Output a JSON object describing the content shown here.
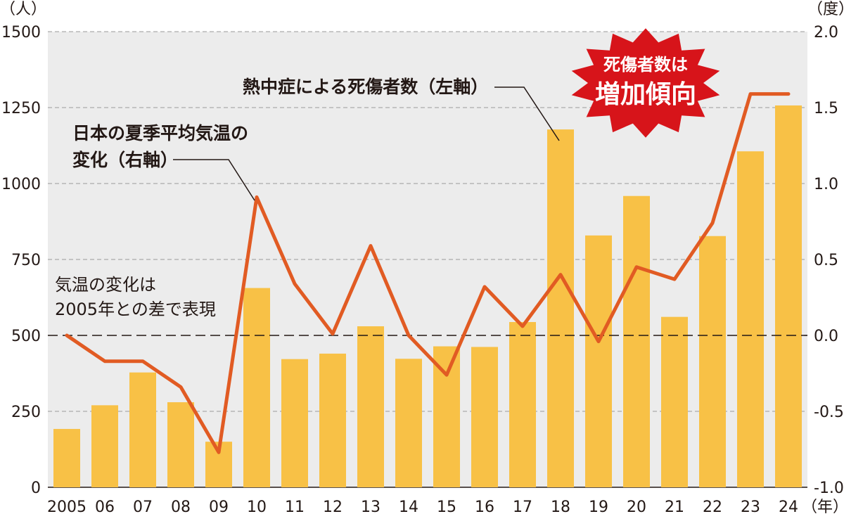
{
  "chart_data": {
    "type": "bar+line",
    "x_labels": [
      "2005",
      "06",
      "07",
      "08",
      "09",
      "10",
      "11",
      "12",
      "13",
      "14",
      "15",
      "16",
      "17",
      "18",
      "19",
      "20",
      "21",
      "22",
      "23",
      "24"
    ],
    "x_unit": "（年）",
    "left_axis": {
      "unit": "（人）",
      "ylim": [
        0,
        1500
      ],
      "ticks": [
        0,
        250,
        500,
        750,
        1000,
        1250,
        1500
      ],
      "tick_labels": [
        "0",
        "250",
        "500",
        "750",
        "1000",
        "1250",
        "1500"
      ]
    },
    "right_axis": {
      "unit": "（度）",
      "ylim": [
        -1.0,
        2.0
      ],
      "ticks": [
        -1.0,
        -0.5,
        0.0,
        0.5,
        1.0,
        1.5,
        2.0
      ],
      "tick_labels": [
        "-1.0",
        "-0.5",
        "0.0",
        "0.5",
        "1.0",
        "1.5",
        "2.0"
      ]
    },
    "series": [
      {
        "name": "熱中症による死傷者数（左軸）",
        "kind": "bar",
        "axis": "left",
        "color": "#F8C146",
        "values": [
          192,
          270,
          378,
          280,
          150,
          656,
          422,
          440,
          530,
          423,
          464,
          462,
          544,
          1178,
          829,
          959,
          561,
          827,
          1106,
          1257
        ]
      },
      {
        "name": "日本の夏季平均気温の変化（右軸）",
        "kind": "line",
        "axis": "right",
        "color": "#E15B23",
        "values": [
          0.0,
          -0.17,
          -0.17,
          -0.34,
          -0.77,
          0.91,
          0.34,
          0.01,
          0.59,
          0.0,
          -0.26,
          0.32,
          0.06,
          0.4,
          -0.04,
          0.45,
          0.37,
          0.74,
          1.59,
          1.59
        ]
      }
    ],
    "grid": true,
    "zero_reference_line": "dashed black at 0.0 (right) / 500 (left)"
  },
  "annotations": {
    "bar_label": "熱中症による死傷者数（左軸）",
    "line_label_line1": "日本の夏季平均気温の",
    "line_label_line2": "変化（右軸）",
    "note_line1": "気温の変化は",
    "note_line2": "2005年との差で表現",
    "burst_line1": "死傷者数は",
    "burst_line2": "増加傾向",
    "burst_color": "#D7141A"
  }
}
